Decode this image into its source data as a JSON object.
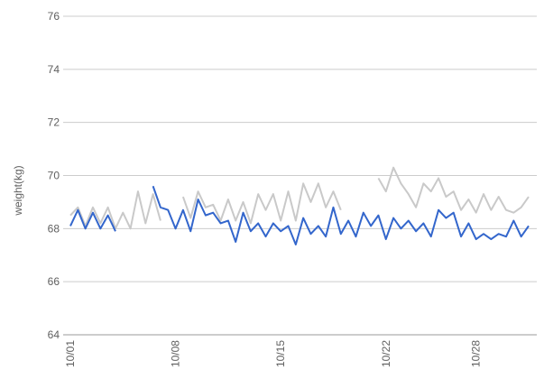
{
  "chart_data": {
    "type": "line",
    "y_label": "weight(kg)",
    "categories": [
      "10/01",
      null,
      null,
      null,
      null,
      null,
      null,
      null,
      null,
      null,
      null,
      null,
      null,
      null,
      "10/08",
      null,
      null,
      null,
      null,
      null,
      null,
      null,
      null,
      null,
      null,
      null,
      null,
      null,
      "10/15",
      null,
      null,
      null,
      null,
      null,
      null,
      null,
      null,
      null,
      null,
      null,
      null,
      null,
      "10/22",
      null,
      null,
      null,
      null,
      null,
      null,
      null,
      null,
      null,
      null,
      null,
      "10/28",
      null,
      null,
      null,
      null,
      null,
      null,
      null
    ],
    "series": [
      {
        "color": "#3366cc",
        "values": [
          68.1,
          68.7,
          68.0,
          68.6,
          68.0,
          68.5,
          67.9,
          null,
          null,
          null,
          null,
          69.6,
          68.8,
          68.7,
          68.0,
          68.7,
          67.9,
          69.1,
          68.5,
          68.6,
          68.2,
          68.3,
          67.5,
          68.6,
          67.9,
          68.2,
          67.7,
          68.2,
          67.9,
          68.1,
          67.4,
          68.4,
          67.8,
          68.1,
          67.7,
          68.8,
          67.8,
          68.3,
          67.7,
          68.6,
          68.1,
          68.5,
          67.6,
          68.4,
          68.0,
          68.3,
          67.9,
          68.2,
          67.7,
          68.7,
          68.4,
          68.6,
          67.7,
          68.2,
          67.6,
          67.8,
          67.6,
          67.8,
          67.7,
          68.3,
          67.7,
          68.1
        ]
      },
      {
        "color": "#c9c9c9",
        "values": [
          68.5,
          68.8,
          68.1,
          68.8,
          68.2,
          68.8,
          68.0,
          68.6,
          68.0,
          69.4,
          68.2,
          69.3,
          68.3,
          null,
          null,
          69.2,
          68.4,
          69.4,
          68.8,
          68.9,
          68.3,
          69.1,
          68.3,
          69.0,
          68.2,
          69.3,
          68.7,
          69.3,
          68.3,
          69.4,
          68.3,
          69.7,
          69.0,
          69.7,
          68.8,
          69.4,
          68.7,
          null,
          null,
          null,
          null,
          69.9,
          69.4,
          70.3,
          69.7,
          69.3,
          68.8,
          69.7,
          69.4,
          69.9,
          69.2,
          69.4,
          68.7,
          69.1,
          68.6,
          69.3,
          68.7,
          69.2,
          68.7,
          68.6,
          68.8,
          69.2
        ]
      }
    ],
    "ylim": [
      64,
      76
    ],
    "yticks": [
      64,
      66,
      68,
      70,
      72,
      74,
      76
    ],
    "grid": true
  }
}
